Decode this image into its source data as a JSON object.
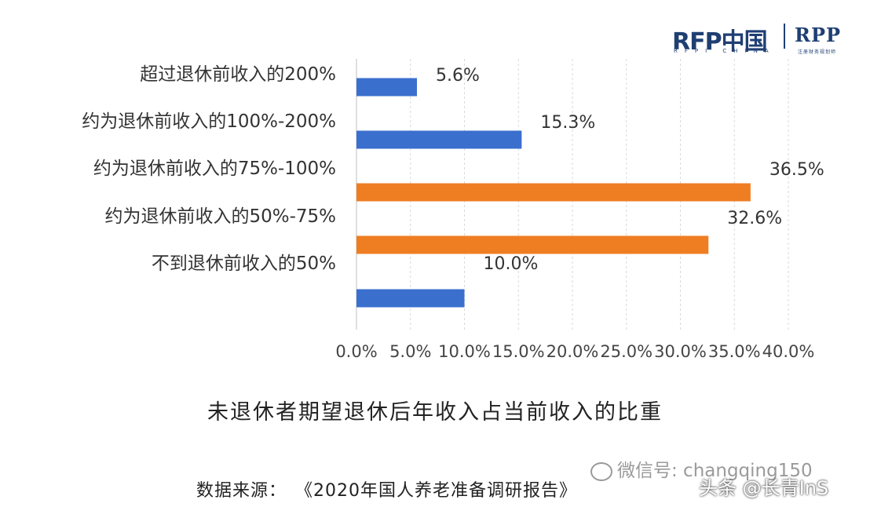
{
  "logo": {
    "left_text": "RFP中国",
    "left_sub": "RFPI CHINA",
    "right_text": "RPP",
    "right_sub": "注册财务规划师"
  },
  "chart_data": {
    "type": "bar",
    "orientation": "horizontal",
    "title": "未退休者期望退休后年收入占当前收入的比重",
    "categories": [
      "超过退休前收入的200%",
      "约为退休前收入的100%-200%",
      "约为退休前收入的75%-100%",
      "约为退休前收入的50%-75%",
      "不到退休前收入的50%"
    ],
    "values": [
      5.6,
      15.3,
      36.5,
      32.6,
      10.0
    ],
    "value_labels": [
      "5.6%",
      "15.3%",
      "36.5%",
      "32.6%",
      "10.0%"
    ],
    "bar_colors": [
      "#3a6fce",
      "#3a6fce",
      "#ef7d22",
      "#ef7d22",
      "#3a6fce"
    ],
    "xlim": [
      0,
      40
    ],
    "x_ticks": [
      "0.0%",
      "5.0%",
      "10.0%",
      "15.0%",
      "20.0%",
      "25.0%",
      "30.0%",
      "35.0%",
      "40.0%"
    ],
    "grid": "vertical-dashed",
    "xlabel": "",
    "ylabel": ""
  },
  "source": {
    "label": "数据来源：",
    "title": "《2020年国人养老准备调研报告》"
  },
  "watermarks": {
    "wechat": "微信号: changqing150",
    "toutiao": "头条 @长青InS"
  }
}
